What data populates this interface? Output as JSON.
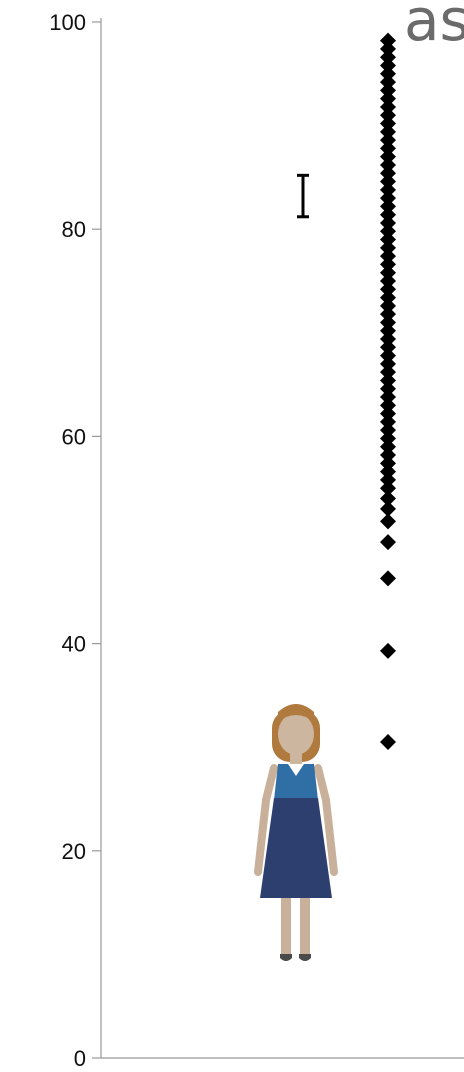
{
  "chart_data": {
    "type": "scatter",
    "title_fragment": "as",
    "ylim": [
      0,
      100
    ],
    "y_ticks": [
      "0",
      "20",
      "40",
      "60",
      "80",
      "100"
    ],
    "grid": false,
    "legend": "none",
    "marker_color": "#000000",
    "series": [
      {
        "marker": "diamond",
        "values": [
          30.5,
          39.3,
          46.3,
          49.8,
          51.8,
          53.0,
          54.0,
          55.0,
          55.8,
          56.6,
          57.4,
          58.2,
          59.0,
          59.8,
          60.6,
          61.4,
          62.2,
          63.0,
          63.8,
          64.6,
          65.4,
          66.2,
          67.0,
          67.8,
          68.6,
          69.4,
          70.2,
          71.0,
          71.8,
          72.6,
          73.4,
          74.2,
          75.0,
          75.8,
          76.6,
          77.4,
          78.2,
          79.0,
          79.8,
          80.6,
          81.4,
          82.2,
          83.0,
          83.8,
          84.6,
          85.4,
          86.2,
          87.0,
          87.8,
          88.6,
          89.4,
          90.2,
          91.0,
          91.8,
          92.6,
          93.4,
          94.2,
          95.0,
          95.8,
          96.6,
          97.4,
          98.2
        ]
      }
    ],
    "error_bar": {
      "low": 81.2,
      "high": 85.2
    }
  },
  "figure": {
    "icon": "woman-figure-icon",
    "hair_color": "#b07a3e",
    "dress_color": "#2c3f6e",
    "top_color": "#2f6fa6",
    "skin_color": "#c8b09a"
  }
}
